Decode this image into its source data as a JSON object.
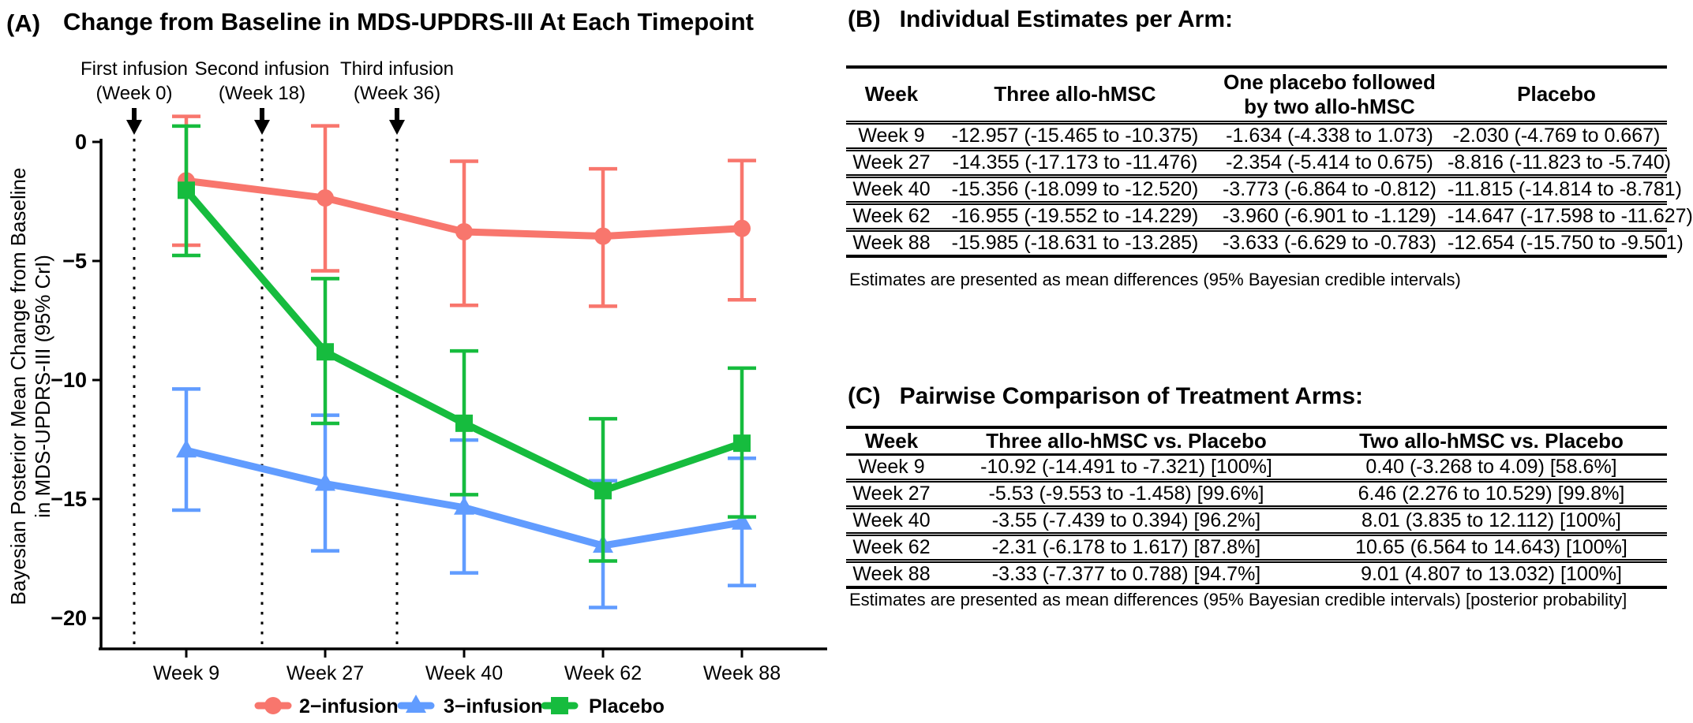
{
  "chart_data": [
    {
      "type": "line",
      "panel_label": "(A)",
      "title": "Change from Baseline in MDS-UPDRS-III At Each Timepoint",
      "ylabel_line1": "Bayesian Posterior Mean Change from Baseline",
      "ylabel_line2": "in MDS-UPDRS-III (95% CrI)",
      "categories": [
        "Week 9",
        "Week 27",
        "Week 40",
        "Week 62",
        "Week 88"
      ],
      "ylim": [
        -21,
        1
      ],
      "yticks": [
        0,
        -5,
        -10,
        -15,
        -20
      ],
      "ytick_labels": [
        "0",
        "−5",
        "−10",
        "−15",
        "−20"
      ],
      "grid": false,
      "legend_position": "bottom",
      "series": [
        {
          "name": "2−infusion",
          "marker": "circle",
          "color": "#F8766D",
          "values": [
            -1.634,
            -2.354,
            -3.773,
            -3.96,
            -3.633
          ],
          "ci_low": [
            -4.338,
            -5.414,
            -6.864,
            -6.901,
            -6.629
          ],
          "ci_high": [
            1.073,
            0.675,
            -0.812,
            -1.129,
            -0.783
          ]
        },
        {
          "name": "3−infusion",
          "marker": "triangle",
          "color": "#619CFF",
          "values": [
            -12.957,
            -14.355,
            -15.356,
            -16.955,
            -15.985
          ],
          "ci_low": [
            -15.465,
            -17.173,
            -18.099,
            -19.552,
            -18.631
          ],
          "ci_high": [
            -10.375,
            -11.476,
            -12.52,
            -14.229,
            -13.285
          ]
        },
        {
          "name": "Placebo",
          "marker": "square",
          "color": "#16BC3E",
          "values": [
            -2.03,
            -8.816,
            -11.815,
            -14.647,
            -12.654
          ],
          "ci_low": [
            -4.769,
            -11.823,
            -14.814,
            -17.598,
            -15.75
          ],
          "ci_high": [
            0.667,
            -5.74,
            -8.781,
            -11.627,
            -9.501
          ]
        }
      ],
      "annotations": [
        {
          "line1": "First infusion",
          "line2": "(Week 0)",
          "week": 0
        },
        {
          "line1": "Second infusion",
          "line2": "(Week 18)",
          "week": 18
        },
        {
          "line1": "Third infusion",
          "line2": "(Week 36)",
          "week": 36
        }
      ]
    },
    {
      "type": "table",
      "panel_label": "(B)",
      "title": "Individual Estimates per Arm:",
      "columns": [
        "Week",
        "Three allo-hMSC",
        "One placebo followed\nby two allo-hMSC",
        "Placebo"
      ],
      "rows": [
        [
          "Week 9",
          "-12.957 (-15.465 to -10.375)",
          "-1.634 (-4.338 to 1.073)",
          "-2.030 (-4.769 to 0.667)"
        ],
        [
          "Week 27",
          "-14.355 (-17.173 to -11.476)",
          "-2.354 (-5.414 to 0.675)",
          "-8.816 (-11.823 to -5.740)"
        ],
        [
          "Week 40",
          "-15.356 (-18.099 to -12.520)",
          "-3.773 (-6.864 to -0.812)",
          "-11.815 (-14.814 to -8.781)"
        ],
        [
          "Week 62",
          "-16.955 (-19.552 to -14.229)",
          "-3.960 (-6.901 to -1.129)",
          "-14.647 (-17.598 to -11.627)"
        ],
        [
          "Week 88",
          "-15.985 (-18.631 to -13.285)",
          "-3.633 (-6.629 to -0.783)",
          "-12.654 (-15.750 to -9.501)"
        ]
      ],
      "footnote": "Estimates are presented as mean differences (95% Bayesian credible intervals)"
    },
    {
      "type": "table",
      "panel_label": "(C)",
      "title": "Pairwise Comparison of Treatment Arms:",
      "columns": [
        "Week",
        "Three allo-hMSC vs. Placebo",
        "Two allo-hMSC vs. Placebo"
      ],
      "rows": [
        [
          "Week 9",
          "-10.92 (-14.491 to -7.321) [100%]",
          "0.40 (-3.268 to 4.09) [58.6%]"
        ],
        [
          "Week 27",
          "-5.53 (-9.553 to -1.458) [99.6%]",
          "6.46 (2.276 to 10.529) [99.8%]"
        ],
        [
          "Week 40",
          "-3.55 (-7.439 to 0.394) [96.2%]",
          "8.01 (3.835 to 12.112) [100%]"
        ],
        [
          "Week 62",
          "-2.31 (-6.178 to 1.617) [87.8%]",
          "10.65 (6.564 to 14.643) [100%]"
        ],
        [
          "Week 88",
          "-3.33 (-7.377 to 0.788) [94.7%]",
          "9.01 (4.807 to 13.032) [100%]"
        ]
      ],
      "footnote": "Estimates are presented as mean differences (95% Bayesian credible intervals) [posterior probability]"
    }
  ]
}
